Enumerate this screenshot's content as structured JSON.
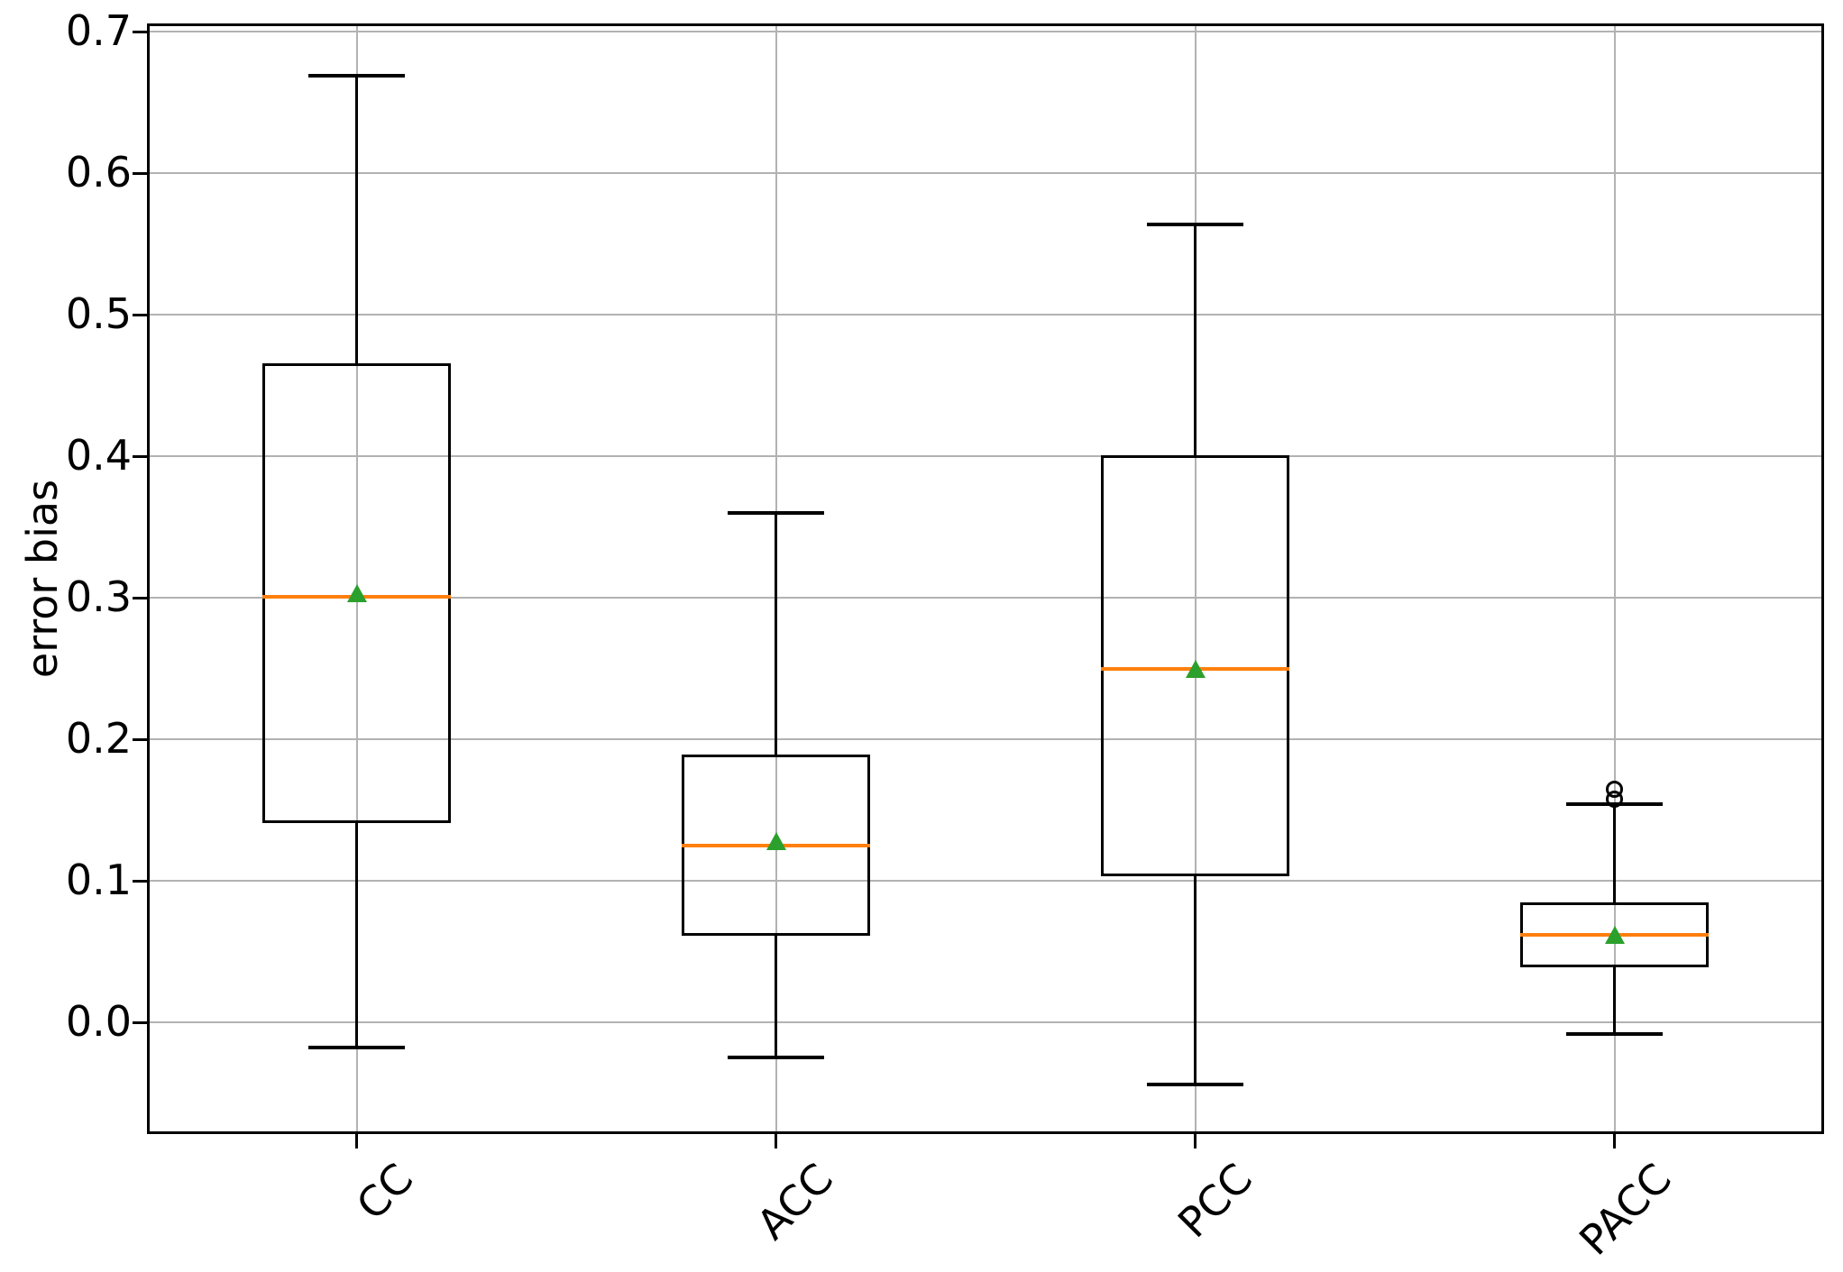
{
  "chart_data": {
    "type": "boxplot",
    "title": "",
    "xlabel": "",
    "ylabel": "error bias",
    "categories": [
      "CC",
      "ACC",
      "PCC",
      "PACC"
    ],
    "yticks": [
      0.0,
      0.1,
      0.2,
      0.3,
      0.4,
      0.5,
      0.6,
      0.7
    ],
    "ytick_labels": [
      "0.0",
      "0.1",
      "0.2",
      "0.3",
      "0.4",
      "0.5",
      "0.6",
      "0.7"
    ],
    "ylim": [
      -0.079,
      0.706
    ],
    "grid": true,
    "xtick_rotation": 45,
    "legend": null,
    "boxes": [
      {
        "label": "CC",
        "whisker_low": -0.018,
        "q1": 0.141,
        "median": 0.301,
        "q3": 0.466,
        "whisker_high": 0.669,
        "mean": 0.303,
        "outliers": []
      },
      {
        "label": "ACC",
        "whisker_low": -0.025,
        "q1": 0.061,
        "median": 0.125,
        "q3": 0.189,
        "whisker_high": 0.36,
        "mean": 0.128,
        "outliers": []
      },
      {
        "label": "PCC",
        "whisker_low": -0.044,
        "q1": 0.103,
        "median": 0.25,
        "q3": 0.401,
        "whisker_high": 0.564,
        "mean": 0.25,
        "outliers": []
      },
      {
        "label": "PACC",
        "whisker_low": -0.008,
        "q1": 0.039,
        "median": 0.062,
        "q3": 0.085,
        "whisker_high": 0.154,
        "mean": 0.062,
        "outliers": [
          0.165,
          0.158
        ]
      }
    ],
    "colors": {
      "box_line": "#000000",
      "median_line": "#ff7f0e",
      "mean_marker": "#2ca02c",
      "grid_line": "#b2b2b2",
      "outlier_edge": "#000000",
      "text": "#000000"
    }
  }
}
